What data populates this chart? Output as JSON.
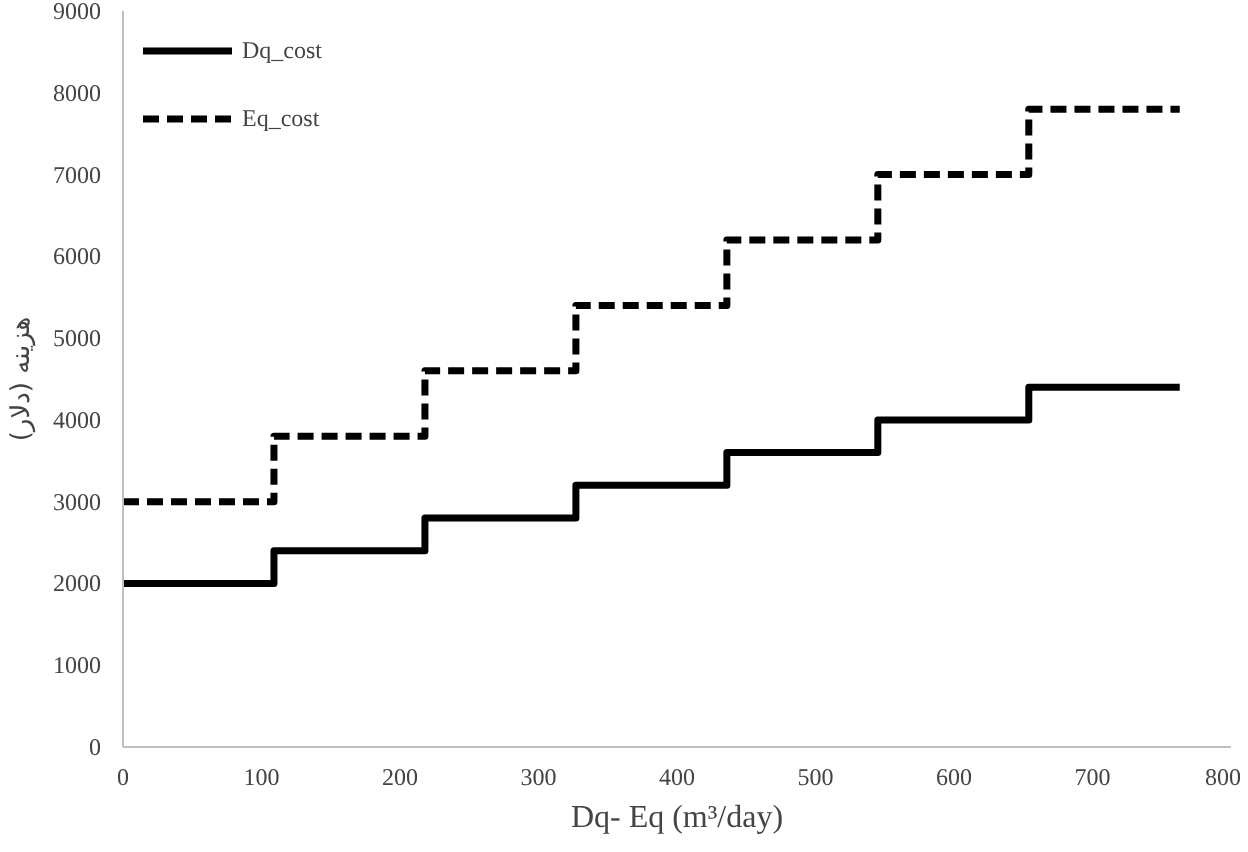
{
  "chart_data": {
    "type": "step",
    "xlabel": "Dq- Eq (m³/day)",
    "ylabel": "هزینه (دلار)",
    "x": [
      0,
      109,
      218,
      327,
      436,
      545,
      654,
      763
    ],
    "series": [
      {
        "name": "Dq_cost",
        "color": "#000000",
        "line_style": "solid",
        "values": [
          2000,
          2400,
          2800,
          3200,
          3600,
          4000,
          4400,
          4400
        ]
      },
      {
        "name": "Eq_cost",
        "color": "#000000",
        "line_style": "dashed",
        "values": [
          3000,
          3800,
          4600,
          5400,
          6200,
          7000,
          7800,
          7800
        ]
      }
    ],
    "xlim": [
      0,
      800
    ],
    "xticks": [
      0,
      100,
      200,
      300,
      400,
      500,
      600,
      700,
      800
    ],
    "ylim": [
      0,
      9000
    ],
    "yticks": [
      0,
      1000,
      2000,
      3000,
      4000,
      5000,
      6000,
      7000,
      8000,
      9000
    ],
    "grid": false,
    "legend": "top left"
  }
}
